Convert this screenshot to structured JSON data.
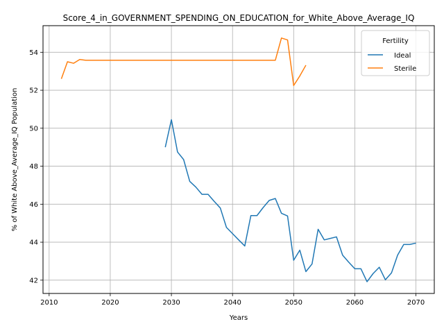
{
  "chart_data": {
    "type": "line",
    "title": "Score_4_in_GOVERNMENT_SPENDING_ON_EDUCATION_for_White_Above_Average_IQ",
    "xlabel": "Years",
    "ylabel": "% of White Above_Average_IQ Population",
    "xlim": [
      2009.0,
      2073.0
    ],
    "ylim": [
      41.3,
      55.4
    ],
    "xticks": [
      2010,
      2020,
      2030,
      2040,
      2050,
      2060,
      2070
    ],
    "yticks": [
      42,
      44,
      46,
      48,
      50,
      52,
      54
    ],
    "grid": true,
    "legend": {
      "title": "Fertility",
      "position": "top-right"
    },
    "series": [
      {
        "name": "Ideal",
        "color": "#1f77b4",
        "x": [
          2029,
          2030,
          2031,
          2032,
          2033,
          2034,
          2035,
          2036,
          2037,
          2038,
          2039,
          2040,
          2041,
          2042,
          2043,
          2044,
          2045,
          2046,
          2047,
          2048,
          2049,
          2050,
          2051,
          2052,
          2053,
          2054,
          2055,
          2056,
          2057,
          2058,
          2059,
          2060,
          2061,
          2062,
          2063,
          2064,
          2065,
          2066,
          2067,
          2068,
          2069,
          2070
        ],
        "y": [
          49.0,
          50.45,
          48.75,
          48.35,
          47.2,
          46.9,
          46.52,
          46.52,
          46.15,
          45.8,
          44.78,
          44.45,
          44.12,
          43.8,
          45.4,
          45.4,
          45.82,
          46.2,
          46.3,
          45.52,
          45.38,
          43.05,
          43.58,
          42.45,
          42.85,
          44.68,
          44.12,
          44.2,
          44.28,
          43.32,
          42.95,
          42.6,
          42.6,
          41.92,
          42.35,
          42.68,
          42.02,
          42.38,
          43.32,
          43.88,
          43.88,
          43.95
        ]
      },
      {
        "name": "Sterile",
        "color": "#ff7f0e",
        "x": [
          2012,
          2013,
          2014,
          2015,
          2016,
          2017,
          2018,
          2019,
          2020,
          2021,
          2022,
          2023,
          2024,
          2025,
          2026,
          2027,
          2028,
          2029,
          2030,
          2031,
          2032,
          2033,
          2034,
          2035,
          2036,
          2037,
          2038,
          2039,
          2040,
          2041,
          2042,
          2043,
          2044,
          2045,
          2046,
          2047,
          2048,
          2049,
          2050,
          2051,
          2052
        ],
        "y": [
          52.6,
          53.5,
          53.42,
          53.62,
          53.58,
          53.58,
          53.58,
          53.58,
          53.58,
          53.58,
          53.58,
          53.58,
          53.58,
          53.58,
          53.58,
          53.58,
          53.58,
          53.58,
          53.58,
          53.58,
          53.58,
          53.58,
          53.58,
          53.58,
          53.58,
          53.58,
          53.58,
          53.58,
          53.58,
          53.58,
          53.58,
          53.58,
          53.58,
          53.58,
          53.58,
          53.58,
          54.75,
          54.65,
          52.25,
          52.75,
          53.32
        ]
      }
    ]
  }
}
